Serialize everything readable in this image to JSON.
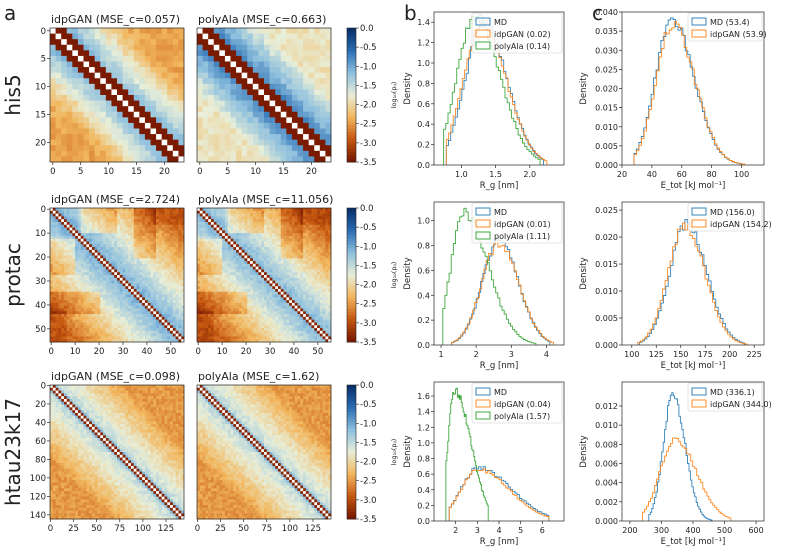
{
  "panel_labels": [
    "a",
    "b",
    "c"
  ],
  "colors": {
    "md": "#1f77b4",
    "idpgan": "#ff7f0e",
    "polyala": "#2ca02c"
  },
  "colormap": [
    "#08306b",
    "#2b6fb4",
    "#8fc0de",
    "#e8eed8",
    "#f2b75e",
    "#c85a12",
    "#7a1a00"
  ],
  "colorbar": {
    "ticks": [
      "0.0",
      "-0.5",
      "-1.0",
      "-1.5",
      "-2.0",
      "-2.5",
      "-3.0",
      "-3.5"
    ],
    "label": "log₁₀(pᵢⱼ)"
  },
  "chart_data": [
    {
      "type": "heatmap",
      "system": "his5",
      "row_label": "his5",
      "titles": [
        "idpGAN (MSE_c=0.057)",
        "polyAla (MSE_c=0.663)"
      ],
      "x_ticks": [
        "0",
        "5",
        "10",
        "15",
        "20"
      ],
      "y_ticks": [
        "0",
        "5",
        "10",
        "15",
        "20"
      ],
      "residues": 24,
      "style": "his5"
    },
    {
      "type": "heatmap",
      "system": "protac",
      "row_label": "protac",
      "titles": [
        "idpGAN (MSE_c=2.724)",
        "polyAla (MSE_c=11.056)"
      ],
      "x_ticks": [
        "0",
        "10",
        "20",
        "30",
        "40",
        "50"
      ],
      "y_ticks": [
        "0",
        "10",
        "20",
        "30",
        "40",
        "50"
      ],
      "residues": 56,
      "style": "protac"
    },
    {
      "type": "heatmap",
      "system": "htau23k17",
      "row_label": "htau23k17",
      "titles": [
        "idpGAN (MSE_c=0.098)",
        "polyAla (MSE_c=1.62)"
      ],
      "x_ticks": [
        "0",
        "25",
        "50",
        "75",
        "100",
        "125"
      ],
      "y_ticks": [
        "0",
        "20",
        "40",
        "60",
        "80",
        "100",
        "120",
        "140"
      ],
      "residues": 145,
      "style": "htau"
    },
    {
      "type": "histogram",
      "system": "his5",
      "quantity": "Rg",
      "xlabel": "R_g [nm]",
      "ylabel": "Density",
      "xlim": [
        0.6,
        2.5
      ],
      "ylim": [
        0,
        1.5
      ],
      "x_ticks": [
        "1.0",
        "1.5",
        "2.0"
      ],
      "x_tick_values": [
        1.0,
        1.5,
        2.0
      ],
      "y_ticks": [
        "0.0",
        "0.2",
        "0.4",
        "0.6",
        "0.8",
        "1.0",
        "1.2",
        "1.4"
      ],
      "y_tick_values": [
        0,
        0.2,
        0.4,
        0.6,
        0.8,
        1.0,
        1.2,
        1.4
      ],
      "legend_position": "top-right",
      "series": [
        {
          "name": "MD",
          "color": "md",
          "mean": 1.33,
          "sd": 0.27,
          "skew": 0.25,
          "range": [
            0.78,
            2.2
          ],
          "peak": 1.4
        },
        {
          "name": "idpGAN (0.02)",
          "color": "idpgan",
          "mean": 1.31,
          "sd": 0.28,
          "skew": 0.25,
          "range": [
            0.78,
            2.25
          ],
          "peak": 1.38
        },
        {
          "name": "polyAla (0.14)",
          "color": "polyala",
          "mean": 1.2,
          "sd": 0.26,
          "skew": 0.4,
          "range": [
            0.74,
            2.15
          ],
          "peak": 1.47
        }
      ]
    },
    {
      "type": "histogram",
      "system": "his5",
      "quantity": "Etot",
      "xlabel": "E_tot [kJ mol⁻¹]",
      "ylabel": "Density",
      "xlim": [
        20,
        115
      ],
      "ylim": [
        0,
        0.04
      ],
      "x_ticks": [
        "20",
        "40",
        "60",
        "80",
        "100"
      ],
      "x_tick_values": [
        20,
        40,
        60,
        80,
        100
      ],
      "y_ticks": [
        "0.000",
        "0.005",
        "0.010",
        "0.015",
        "0.020",
        "0.025",
        "0.030",
        "0.035",
        "0.040"
      ],
      "y_tick_values": [
        0,
        0.005,
        0.01,
        0.015,
        0.02,
        0.025,
        0.03,
        0.035,
        0.04
      ],
      "legend_position": "top-right",
      "series": [
        {
          "name": "MD (53.4)",
          "color": "md",
          "mean": 53.4,
          "sd": 11,
          "skew": 0.35,
          "range": [
            28,
            100
          ],
          "peak": 0.038
        },
        {
          "name": "idpGAN (53.9)",
          "color": "idpgan",
          "mean": 53.9,
          "sd": 11,
          "skew": 0.35,
          "range": [
            28,
            102
          ],
          "peak": 0.037
        }
      ]
    },
    {
      "type": "histogram",
      "system": "protac",
      "quantity": "Rg",
      "xlabel": "R_g [nm]",
      "ylabel": "Density",
      "xlim": [
        0.8,
        4.5
      ],
      "ylim": [
        0,
        1.15
      ],
      "x_ticks": [
        "1",
        "2",
        "3",
        "4"
      ],
      "x_tick_values": [
        1,
        2,
        3,
        4
      ],
      "y_ticks": [
        "0.0",
        "0.2",
        "0.4",
        "0.6",
        "0.8",
        "1.0"
      ],
      "y_tick_values": [
        0,
        0.2,
        0.4,
        0.6,
        0.8,
        1.0
      ],
      "legend_position": "top-right",
      "series": [
        {
          "name": "MD",
          "color": "md",
          "mean": 2.65,
          "sd": 0.48,
          "skew": 0.15,
          "range": [
            1.3,
            4.1
          ],
          "peak": 0.84
        },
        {
          "name": "idpGAN (0.01)",
          "color": "idpgan",
          "mean": 2.65,
          "sd": 0.49,
          "skew": 0.15,
          "range": [
            1.3,
            4.2
          ],
          "peak": 0.82
        },
        {
          "name": "polyAla (1.11)",
          "color": "polyala",
          "mean": 1.65,
          "sd": 0.36,
          "skew": 0.9,
          "range": [
            1.05,
            3.7
          ],
          "peak": 1.07
        }
      ]
    },
    {
      "type": "histogram",
      "system": "protac",
      "quantity": "Etot",
      "xlabel": "E_tot [kJ mol⁻¹]",
      "ylabel": "Density",
      "xlim": [
        90,
        235
      ],
      "ylim": [
        0,
        0.0265
      ],
      "x_ticks": [
        "100",
        "125",
        "150",
        "175",
        "200",
        "225"
      ],
      "x_tick_values": [
        100,
        125,
        150,
        175,
        200,
        225
      ],
      "y_ticks": [
        "0.000",
        "0.005",
        "0.010",
        "0.015",
        "0.020",
        "0.025"
      ],
      "y_tick_values": [
        0,
        0.005,
        0.01,
        0.015,
        0.02,
        0.025
      ],
      "legend_position": "top-right",
      "series": [
        {
          "name": "MD (156.0)",
          "color": "md",
          "mean": 156.0,
          "sd": 17,
          "skew": 0.2,
          "range": [
            108,
            215
          ],
          "peak": 0.0225
        },
        {
          "name": "idpGAN (154.2)",
          "color": "idpgan",
          "mean": 154.2,
          "sd": 17,
          "skew": 0.2,
          "range": [
            106,
            218
          ],
          "peak": 0.0222
        }
      ]
    },
    {
      "type": "histogram",
      "system": "htau23k17",
      "quantity": "Rg",
      "xlabel": "R_g [nm]",
      "ylabel": "Density",
      "xlim": [
        1.0,
        7.0
      ],
      "ylim": [
        0,
        1.78
      ],
      "x_ticks": [
        "2",
        "3",
        "4",
        "5",
        "6"
      ],
      "x_tick_values": [
        2,
        3,
        4,
        5,
        6
      ],
      "y_ticks": [
        "0.0",
        "0.2",
        "0.4",
        "0.6",
        "0.8",
        "1.0",
        "1.2",
        "1.4",
        "1.6"
      ],
      "y_tick_values": [
        0,
        0.2,
        0.4,
        0.6,
        0.8,
        1.0,
        1.2,
        1.4,
        1.6
      ],
      "legend_position": "top-right",
      "series": [
        {
          "name": "MD",
          "color": "md",
          "mean": 3.05,
          "sd": 0.8,
          "skew": 0.9,
          "range": [
            1.7,
            6.3
          ],
          "peak": 0.68
        },
        {
          "name": "idpGAN (0.04)",
          "color": "idpgan",
          "mean": 3.05,
          "sd": 0.8,
          "skew": 0.8,
          "range": [
            1.7,
            6.3
          ],
          "peak": 0.66
        },
        {
          "name": "polyAla (1.57)",
          "color": "polyala",
          "mean": 1.95,
          "sd": 0.3,
          "skew": 1.5,
          "range": [
            1.55,
            3.5
          ],
          "peak": 1.68
        }
      ]
    },
    {
      "type": "histogram",
      "system": "htau23k17",
      "quantity": "Etot",
      "xlabel": "E_tot [kJ mol⁻¹]",
      "ylabel": "Density",
      "xlim": [
        175,
        625
      ],
      "ylim": [
        0,
        0.0145
      ],
      "x_ticks": [
        "200",
        "300",
        "400",
        "500",
        "600"
      ],
      "x_tick_values": [
        200,
        300,
        400,
        500,
        600
      ],
      "y_ticks": [
        "0.000",
        "0.002",
        "0.004",
        "0.006",
        "0.008",
        "0.010",
        "0.012"
      ],
      "y_tick_values": [
        0,
        0.002,
        0.004,
        0.006,
        0.008,
        0.01,
        0.012
      ],
      "legend_position": "top-right",
      "series": [
        {
          "name": "MD (336.1)",
          "color": "md",
          "mean": 336.1,
          "sd": 30,
          "skew": 0.3,
          "range": [
            260,
            460
          ],
          "peak": 0.0132
        },
        {
          "name": "idpGAN (344.0)",
          "color": "idpgan",
          "mean": 344.0,
          "sd": 48,
          "skew": 0.4,
          "range": [
            240,
            520
          ],
          "peak": 0.0085
        }
      ]
    }
  ]
}
